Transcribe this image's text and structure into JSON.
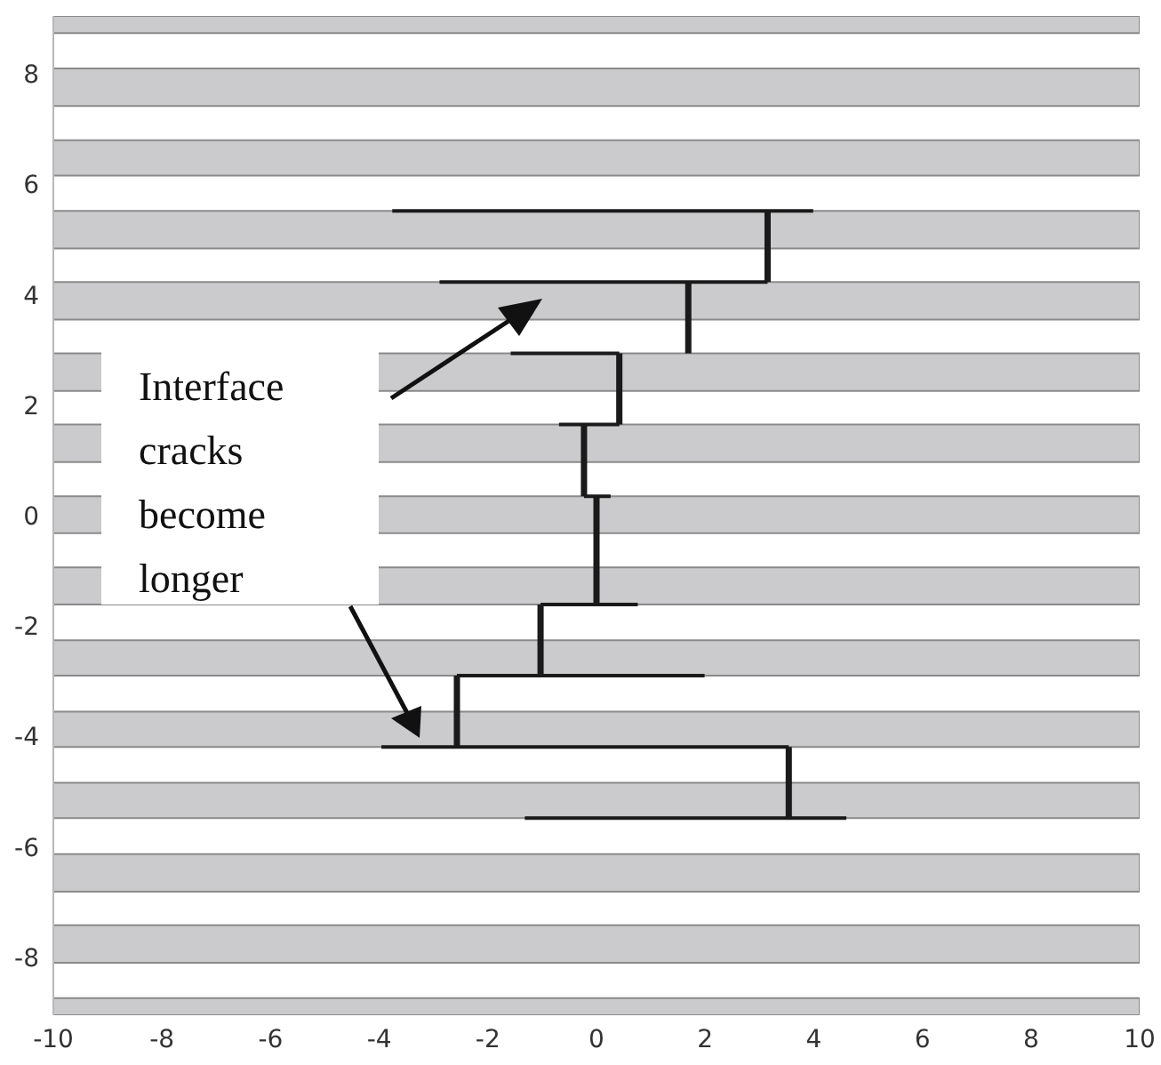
{
  "chart_data": {
    "type": "line",
    "xlim": [
      -10,
      10
    ],
    "xticks": [
      -10,
      -8,
      -6,
      -4,
      -2,
      0,
      2,
      4,
      6,
      8,
      10
    ],
    "ylim": [
      -9.05,
      9.05
    ],
    "yticks": [
      -8,
      -6,
      -4,
      -2,
      0,
      2,
      4,
      6,
      8
    ],
    "marker": "none",
    "line_style": "solid",
    "series": [
      {
        "color": "#1a1a1a",
        "x": [
          3.15,
          3.15,
          null,
          1.69,
          1.69,
          null,
          0.42,
          0.42,
          null,
          -0.23,
          -0.23,
          null,
          0,
          0,
          null,
          -1.03,
          -1.03,
          null,
          -2.57,
          -2.57,
          null,
          3.54,
          3.54
        ],
        "values": [
          5.52,
          4.23,
          null,
          4.23,
          2.94,
          null,
          2.94,
          1.65,
          null,
          1.65,
          0.35,
          null,
          0.35,
          -1.61,
          null,
          -1.61,
          -2.9,
          null,
          -2.9,
          -4.19,
          null,
          -4.19,
          -5.48
        ]
      },
      {
        "color": "#1a1a1a",
        "x": [
          -3.76,
          3.99,
          null,
          -2.89,
          3.15,
          null,
          -1.58,
          0.42,
          null,
          -0.69,
          0.42,
          null,
          -0.23,
          0.26,
          null,
          -1.03,
          0.76,
          null,
          -2.57,
          1.99,
          null,
          -3.96,
          3.54,
          null,
          -1.32,
          4.6
        ],
        "values": [
          5.52,
          5.52,
          null,
          4.23,
          4.23,
          null,
          2.94,
          2.94,
          null,
          1.65,
          1.65,
          null,
          0.35,
          0.35,
          null,
          -1.61,
          -1.61,
          null,
          -2.9,
          -2.9,
          null,
          -4.19,
          -4.19,
          null,
          -5.48,
          -5.48
        ]
      }
    ],
    "bands": [
      {
        "axis": "y",
        "from": 8.74,
        "to": 9.05,
        "color": "#cbcbcd"
      },
      {
        "axis": "y",
        "from": 7.42,
        "to": 8.1,
        "color": "#cbcbcd"
      },
      {
        "axis": "y",
        "from": 6.16,
        "to": 6.8,
        "color": "#cbcbcd"
      },
      {
        "axis": "y",
        "from": 4.84,
        "to": 5.52,
        "color": "#cbcbcd"
      },
      {
        "axis": "y",
        "from": 3.55,
        "to": 4.23,
        "color": "#cbcbcd"
      },
      {
        "axis": "y",
        "from": 2.26,
        "to": 2.94,
        "color": "#cbcbcd"
      },
      {
        "axis": "y",
        "from": 0.97,
        "to": 1.65,
        "color": "#cbcbcd"
      },
      {
        "axis": "y",
        "from": -0.32,
        "to": 0.35,
        "color": "#cbcbcd"
      },
      {
        "axis": "y",
        "from": -1.61,
        "to": -0.94,
        "color": "#cbcbcd"
      },
      {
        "axis": "y",
        "from": -2.9,
        "to": -2.26,
        "color": "#cbcbcd"
      },
      {
        "axis": "y",
        "from": -4.19,
        "to": -3.55,
        "color": "#cbcbcd"
      },
      {
        "axis": "y",
        "from": -5.48,
        "to": -4.84,
        "color": "#cbcbcd"
      },
      {
        "axis": "y",
        "from": -6.81,
        "to": -6.13,
        "color": "#cbcbcd"
      },
      {
        "axis": "y",
        "from": -8.1,
        "to": -7.42,
        "color": "#cbcbcd"
      },
      {
        "axis": "y",
        "from": -9.05,
        "to": -8.74,
        "color": "#cbcbcd"
      }
    ],
    "annotations": [
      "Interface cracks become longer"
    ]
  }
}
